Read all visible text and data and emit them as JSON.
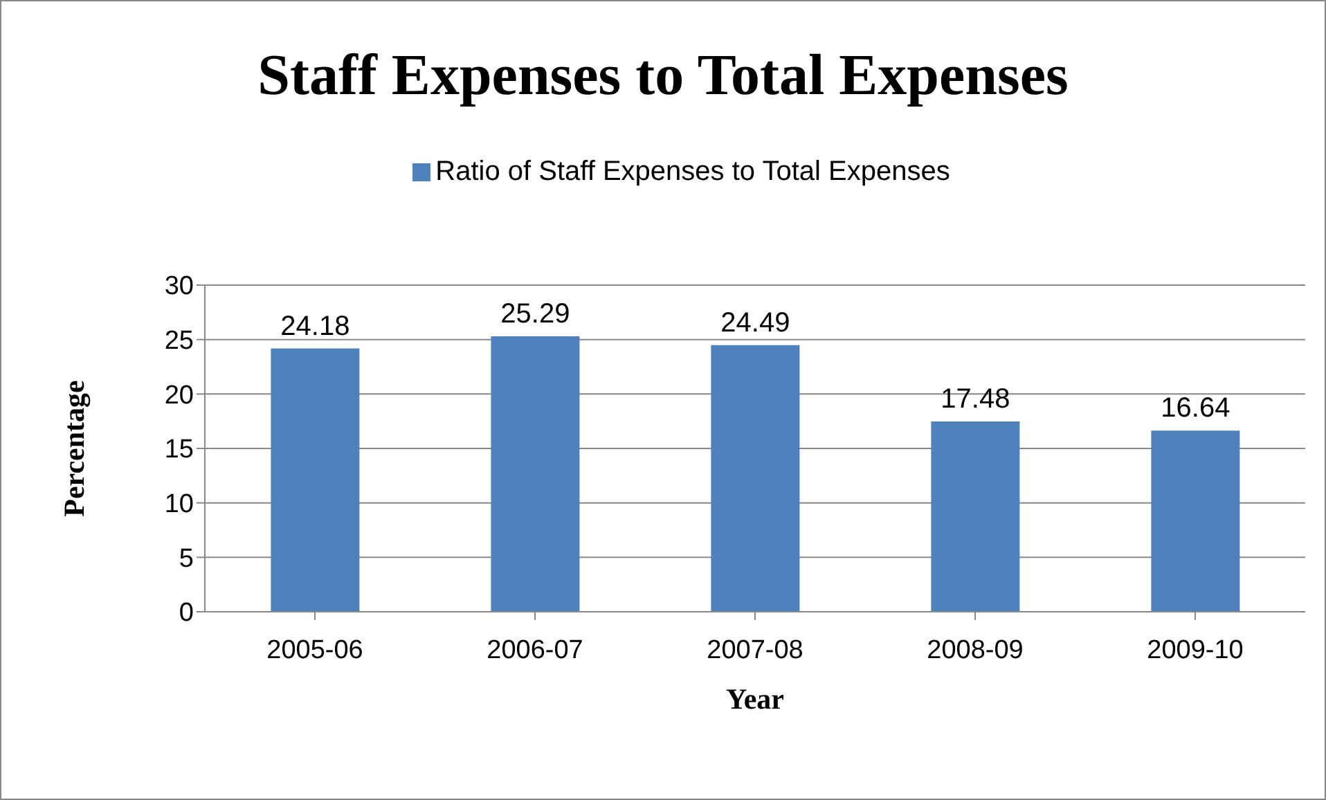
{
  "chart_data": {
    "type": "bar",
    "title": "Staff Expenses to Total Expenses",
    "xlabel": "Year",
    "ylabel": "Percentage",
    "categories": [
      "2005-06",
      "2006-07",
      "2007-08",
      "2008-09",
      "2009-10"
    ],
    "series": [
      {
        "name": "Ratio of Staff Expenses to Total Expenses",
        "color": "#4f81bd",
        "values": [
          24.18,
          25.29,
          24.49,
          17.48,
          16.64
        ]
      }
    ],
    "ylim": [
      0,
      30
    ],
    "yticks": [
      0,
      5,
      10,
      15,
      20,
      25,
      30
    ],
    "grid": "y",
    "legend": "top",
    "data_labels": true
  }
}
